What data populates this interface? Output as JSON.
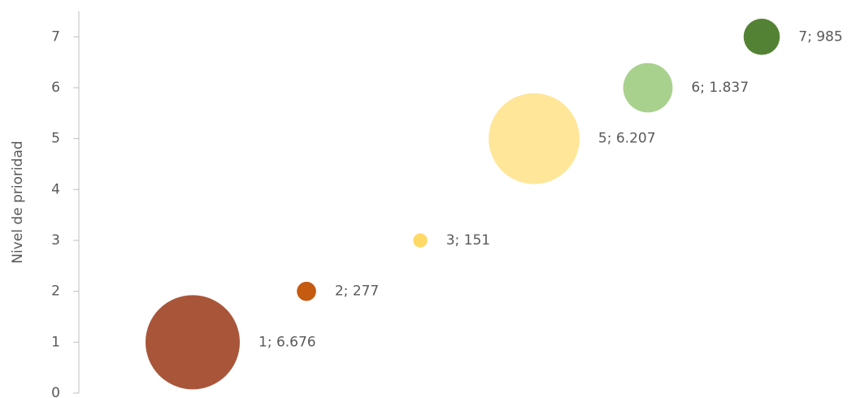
{
  "chart_data": {
    "type": "bubble",
    "y_label": "Nivel de prioridad",
    "categories": [
      null,
      null,
      null,
      null,
      null,
      null
    ],
    "values": [
      1,
      2,
      3,
      5,
      6,
      7
    ],
    "sizes": [
      6676,
      277,
      151,
      6207,
      1837,
      985
    ],
    "value_labels": [
      "1;  6.676",
      "2;  277",
      "3;  151",
      "5;  6.207",
      "6;  1.837",
      "7;  985"
    ],
    "colors": [
      "#a9553a",
      "#c55a11",
      "#ffd966",
      "#ffe699",
      "#a9d18e",
      "#548235"
    ],
    "ylim": [
      0,
      7.5
    ],
    "yticks": [
      0,
      1,
      2,
      3,
      4,
      5,
      6,
      7
    ]
  }
}
